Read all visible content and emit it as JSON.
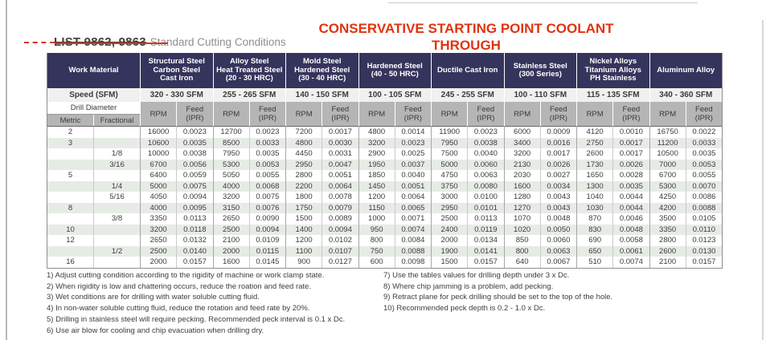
{
  "header": {
    "list_label": "LIST 9862, 9863",
    "subtitle": "Standard Cutting Conditions",
    "banner": "CONSERVATIVE STARTING POINT COOLANT THROUGH"
  },
  "colors": {
    "header_navy": "#35345C",
    "subheader_gray": "#B5B5B5",
    "speed_row_bg": "#F0F1EE",
    "row_shade": "#E7EBE6",
    "accent_red": "#E0330F",
    "text": "#3B3B3B"
  },
  "table": {
    "work_material_label": "Work Material",
    "speed_label": "Speed (SFM)",
    "drill_diameter_label": "Drill Diameter",
    "metric_label": "Metric",
    "fractional_label": "Fractional",
    "rpm_label": "RPM",
    "feed_label_lines": [
      "Feed",
      "(IPR)"
    ],
    "materials": [
      {
        "lines": [
          "Structural Steel",
          "Carbon Steel",
          "Cast Iron"
        ],
        "speed": "320 - 330 SFM"
      },
      {
        "lines": [
          "Alloy Steel",
          "Heat Treated Steel",
          "(20 - 30 HRC)"
        ],
        "speed": "255 - 265 SFM"
      },
      {
        "lines": [
          "Mold Steel",
          "Hardened Steel",
          "(30 - 40 HRC)"
        ],
        "speed": "140 - 150 SFM"
      },
      {
        "lines": [
          "Hardened Steel",
          "(40 - 50 HRC)"
        ],
        "speed": "100 - 105 SFM"
      },
      {
        "lines": [
          "Ductile Cast Iron"
        ],
        "speed": "245 - 255 SFM"
      },
      {
        "lines": [
          "Stainless Steel",
          "(300 Series)"
        ],
        "speed": "100 - 110 SFM"
      },
      {
        "lines": [
          "Nickel Alloys",
          "Titanium Alloys",
          "PH Stainless"
        ],
        "speed": "115 - 135 SFM"
      },
      {
        "lines": [
          "Aluminum Alloy"
        ],
        "speed": "340 - 360 SFM"
      }
    ],
    "rows": [
      {
        "metric": "2",
        "fractional": "",
        "cells": [
          "16000",
          "0.0023",
          "12700",
          "0.0023",
          "7200",
          "0.0017",
          "4800",
          "0.0014",
          "11900",
          "0.0023",
          "6000",
          "0.0009",
          "4120",
          "0.0010",
          "16750",
          "0.0022"
        ]
      },
      {
        "metric": "3",
        "fractional": "",
        "cells": [
          "10600",
          "0.0035",
          "8500",
          "0.0033",
          "4800",
          "0.0030",
          "3200",
          "0.0023",
          "7950",
          "0.0038",
          "3400",
          "0.0016",
          "2750",
          "0.0017",
          "11200",
          "0.0033"
        ]
      },
      {
        "metric": "",
        "fractional": "1/8",
        "cells": [
          "10000",
          "0.0038",
          "7950",
          "0.0035",
          "4450",
          "0.0031",
          "2900",
          "0.0025",
          "7500",
          "0.0040",
          "3200",
          "0.0017",
          "2600",
          "0.0017",
          "10500",
          "0.0035"
        ]
      },
      {
        "metric": "",
        "fractional": "3/16",
        "cells": [
          "6700",
          "0.0056",
          "5300",
          "0.0053",
          "2950",
          "0.0047",
          "1950",
          "0.0037",
          "5000",
          "0.0060",
          "2130",
          "0.0026",
          "1730",
          "0.0026",
          "7000",
          "0.0053"
        ]
      },
      {
        "metric": "5",
        "fractional": "",
        "cells": [
          "6400",
          "0.0059",
          "5050",
          "0.0055",
          "2800",
          "0.0051",
          "1850",
          "0.0040",
          "4750",
          "0.0063",
          "2030",
          "0.0027",
          "1650",
          "0.0028",
          "6700",
          "0.0055"
        ]
      },
      {
        "metric": "",
        "fractional": "1/4",
        "cells": [
          "5000",
          "0.0075",
          "4000",
          "0.0068",
          "2200",
          "0.0064",
          "1450",
          "0.0051",
          "3750",
          "0.0080",
          "1600",
          "0.0034",
          "1300",
          "0.0035",
          "5300",
          "0.0070"
        ]
      },
      {
        "metric": "",
        "fractional": "5/16",
        "cells": [
          "4050",
          "0.0094",
          "3200",
          "0.0075",
          "1800",
          "0.0078",
          "1200",
          "0.0064",
          "3000",
          "0.0100",
          "1280",
          "0.0043",
          "1040",
          "0.0044",
          "4250",
          "0.0086"
        ]
      },
      {
        "metric": "8",
        "fractional": "",
        "cells": [
          "4000",
          "0.0095",
          "3150",
          "0.0076",
          "1750",
          "0.0079",
          "1150",
          "0.0065",
          "2950",
          "0.0101",
          "1270",
          "0.0043",
          "1030",
          "0.0044",
          "4200",
          "0.0088"
        ]
      },
      {
        "metric": "",
        "fractional": "3/8",
        "cells": [
          "3350",
          "0.0113",
          "2650",
          "0.0090",
          "1500",
          "0.0089",
          "1000",
          "0.0071",
          "2500",
          "0.0113",
          "1070",
          "0.0048",
          "870",
          "0.0046",
          "3500",
          "0.0105"
        ]
      },
      {
        "metric": "10",
        "fractional": "",
        "cells": [
          "3200",
          "0.0118",
          "2500",
          "0.0094",
          "1400",
          "0.0094",
          "950",
          "0.0074",
          "2400",
          "0.0119",
          "1020",
          "0.0050",
          "830",
          "0.0048",
          "3350",
          "0.0110"
        ]
      },
      {
        "metric": "12",
        "fractional": "",
        "cells": [
          "2650",
          "0.0132",
          "2100",
          "0.0109",
          "1200",
          "0.0102",
          "800",
          "0.0084",
          "2000",
          "0.0134",
          "850",
          "0.0060",
          "690",
          "0.0058",
          "2800",
          "0.0123"
        ]
      },
      {
        "metric": "",
        "fractional": "1/2",
        "cells": [
          "2500",
          "0.0140",
          "2000",
          "0.0115",
          "1100",
          "0.0107",
          "750",
          "0.0088",
          "1900",
          "0.0141",
          "800",
          "0.0063",
          "650",
          "0.0061",
          "2600",
          "0.0130"
        ]
      },
      {
        "metric": "16",
        "fractional": "",
        "cells": [
          "2000",
          "0.0157",
          "1600",
          "0.0145",
          "900",
          "0.0127",
          "600",
          "0.0098",
          "1500",
          "0.0157",
          "640",
          "0.0067",
          "510",
          "0.0074",
          "2100",
          "0.0157"
        ]
      }
    ]
  },
  "footnotes": {
    "left": [
      "1) Adjust cutting condition according to the rigidity of machine or work clamp state.",
      "2) When rigidity is low and chattering occurs, reduce the roation and feed rate.",
      "3) Wet conditions are for drilling with water soluble cutting fluid.",
      "4) In non-water soluble cutting fluid, reduce the rotation and feed rate by 20%.",
      "5) Drilling in stainless steel will require pecking. Recommended peck interval is 0.1 x Dc.",
      "6) Use air blow for cooling and chip evacuation when drilling dry."
    ],
    "right": [
      "7) Use the tables values for drilling depth under 3 x Dc.",
      "8) Where chip jamming is a problem, add pecking.",
      "9) Retract plane for peck drilling should be set to the top of the hole.",
      "10) Recommended peck depth is 0.2 - 1.0 x Dc."
    ]
  }
}
